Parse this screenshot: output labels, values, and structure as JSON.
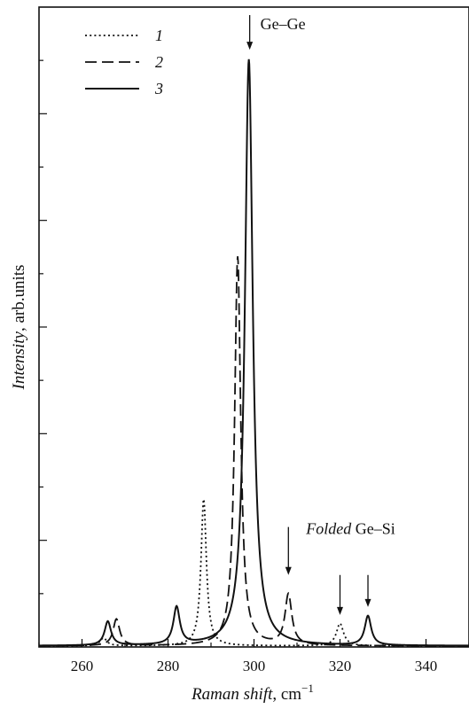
{
  "chart_data": {
    "type": "line",
    "title": "",
    "xlabel": {
      "italic": "Raman shift",
      "rest": ", cm",
      "sup": "−1"
    },
    "ylabel": {
      "italic": "Intensity",
      "rest": ", arb.units"
    },
    "xlim": [
      250,
      350
    ],
    "ylim": [
      0,
      12
    ],
    "xticks": [
      260,
      280,
      300,
      320,
      340
    ],
    "yticks": [
      1,
      2,
      3,
      4,
      5,
      6,
      7,
      8,
      9,
      10,
      11
    ],
    "y_tick_labels": false,
    "grid": false,
    "legend": {
      "position": "top-left",
      "entries": [
        {
          "label": "1",
          "style": "dotted"
        },
        {
          "label": "2",
          "style": "dashed"
        },
        {
          "label": "3",
          "style": "solid"
        }
      ]
    },
    "series": [
      {
        "name": "1",
        "style": "dotted",
        "baseline": 0.02,
        "peaks": [
          {
            "x": 265.0,
            "height": 0.15,
            "width": 0.9
          },
          {
            "x": 288.3,
            "height": 2.75,
            "width": 0.75
          },
          {
            "x": 320.0,
            "height": 0.42,
            "width": 1.0
          }
        ]
      },
      {
        "name": "2",
        "style": "dashed",
        "baseline": 0.02,
        "peaks": [
          {
            "x": 268.0,
            "height": 0.5,
            "width": 0.9
          },
          {
            "x": 296.2,
            "height": 7.3,
            "width": 0.85
          },
          {
            "x": 308.0,
            "height": 0.95,
            "width": 0.95
          }
        ]
      },
      {
        "name": "3",
        "style": "solid",
        "baseline": 0.02,
        "peaks": [
          {
            "x": 266.0,
            "height": 0.45,
            "width": 0.9
          },
          {
            "x": 282.0,
            "height": 0.7,
            "width": 0.9
          },
          {
            "x": 298.8,
            "height": 11.0,
            "width": 1.1
          },
          {
            "x": 326.5,
            "height": 0.55,
            "width": 0.9
          }
        ]
      }
    ],
    "annotations": [
      {
        "text": "Ge–Ge",
        "italic_prefix": "",
        "arrow_x": 299.0,
        "arrow_from_y": 11.85,
        "arrow_to_y": 11.2
      },
      {
        "text": " Ge–Si",
        "italic_prefix": "Folded",
        "arrow_x": 308.0,
        "arrow_from_y": 2.25,
        "arrow_to_y": 1.35
      },
      {
        "text": "",
        "italic_prefix": "",
        "arrow_x": 320.0,
        "arrow_from_y": 1.35,
        "arrow_to_y": 0.6
      },
      {
        "text": "",
        "italic_prefix": "",
        "arrow_x": 326.5,
        "arrow_from_y": 1.35,
        "arrow_to_y": 0.75
      }
    ]
  }
}
